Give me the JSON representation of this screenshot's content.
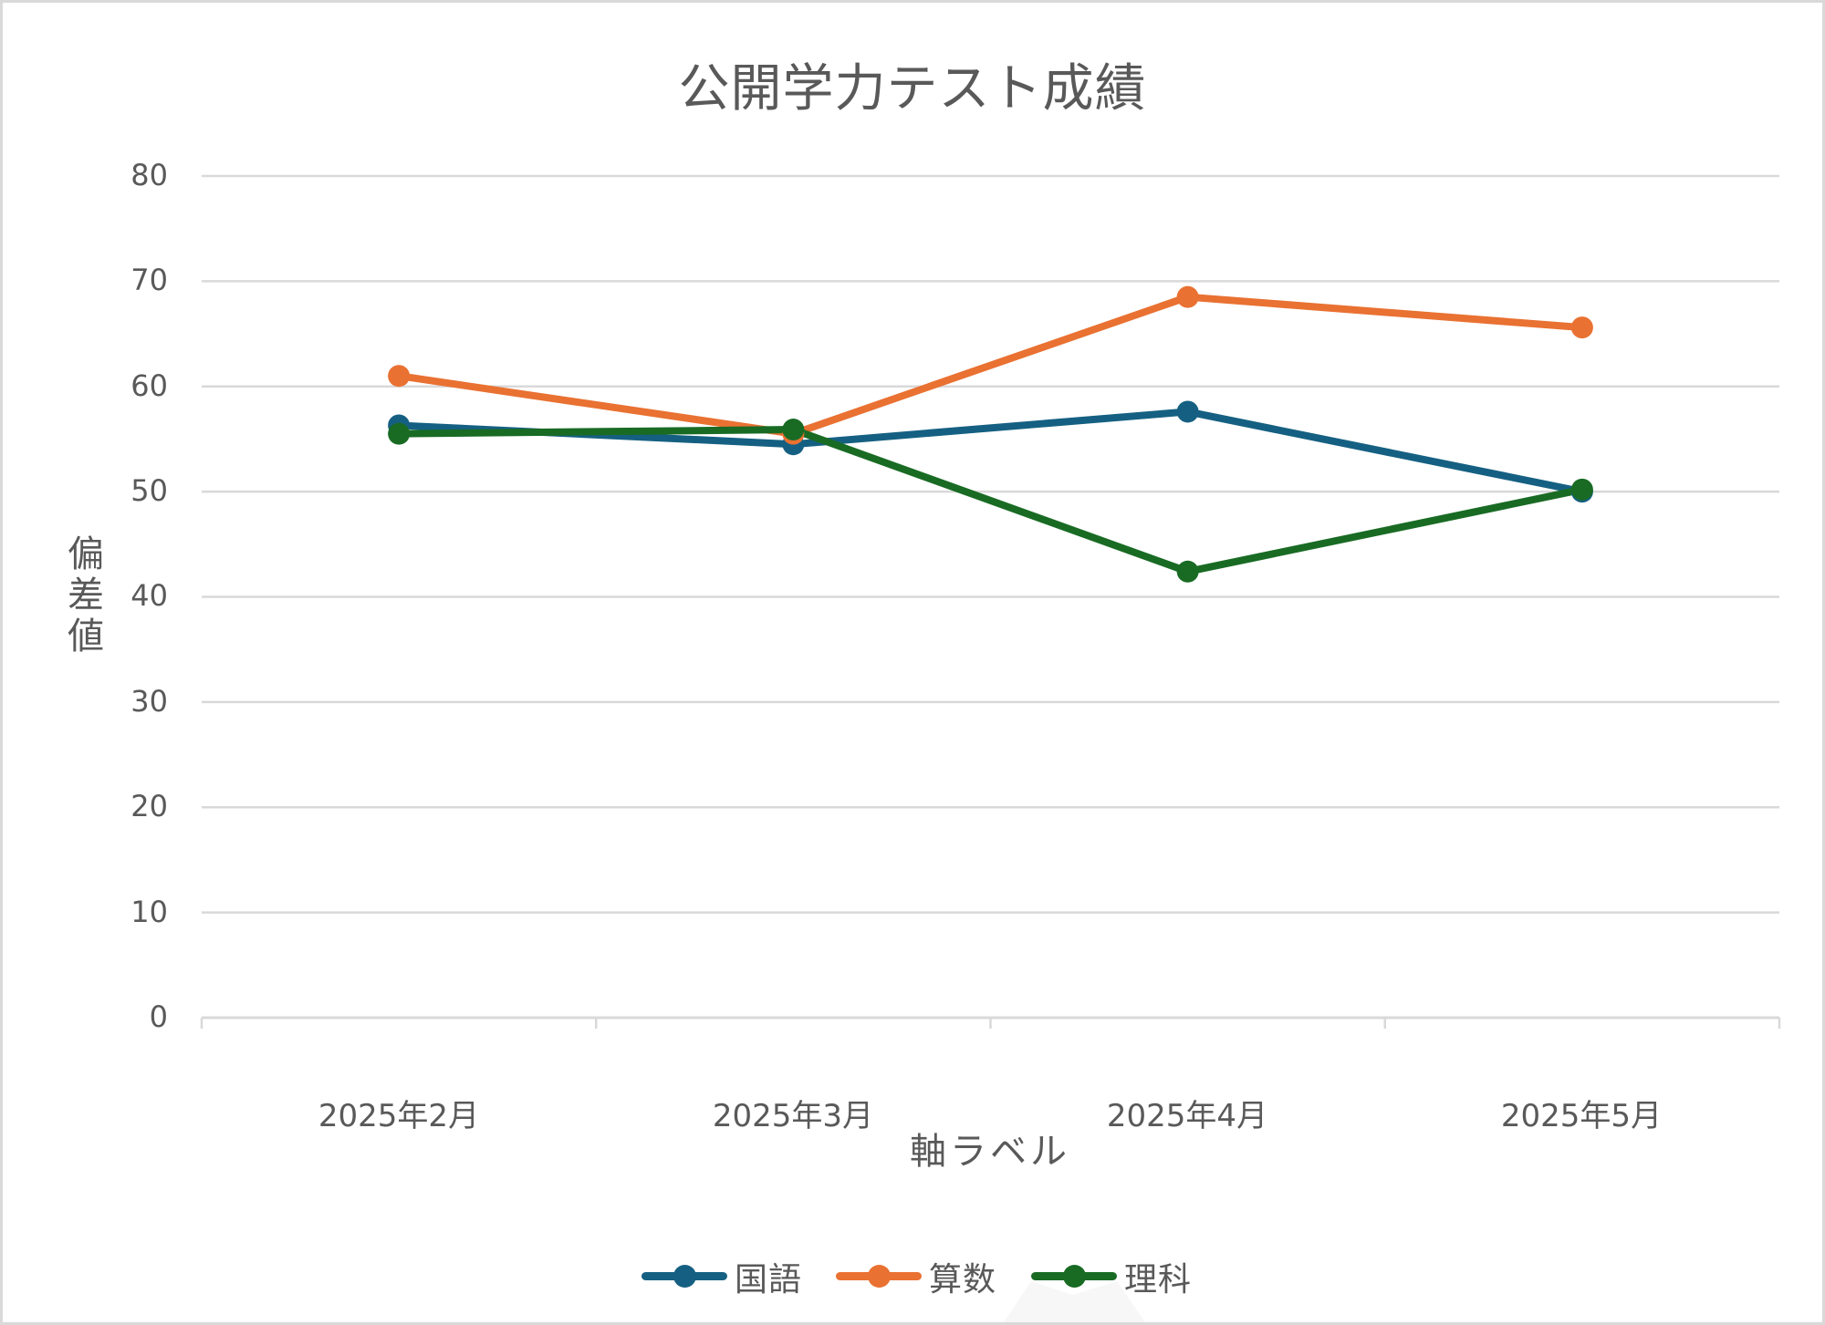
{
  "chart": {
    "title": "公開学力テスト成績",
    "y_axis_title": [
      "偏",
      "差",
      "値"
    ],
    "x_axis_title": "軸ラベル",
    "y_ticks": [
      "0",
      "10",
      "20",
      "30",
      "40",
      "50",
      "60",
      "70",
      "80"
    ],
    "x_ticks": [
      "2025年2月",
      "2025年3月",
      "2025年4月",
      "2025年5月"
    ],
    "legend": [
      {
        "label": "国語",
        "color": "#156082"
      },
      {
        "label": "算数",
        "color": "#E97132"
      },
      {
        "label": "理科",
        "color": "#196B24"
      }
    ],
    "gridline_color": "#d9d9d9",
    "border_color": "#d9d9d9"
  },
  "chart_data": {
    "type": "line",
    "title": "公開学力テスト成績",
    "xlabel": "軸ラベル",
    "ylabel": "偏差値",
    "categories": [
      "2025年2月",
      "2025年3月",
      "2025年4月",
      "2025年5月"
    ],
    "series": [
      {
        "name": "国語",
        "values": [
          56.3,
          54.5,
          57.6,
          50.0
        ],
        "color": "#156082"
      },
      {
        "name": "算数",
        "values": [
          61.0,
          55.5,
          68.5,
          65.6
        ],
        "color": "#E97132"
      },
      {
        "name": "理科",
        "values": [
          55.5,
          55.9,
          42.4,
          50.2
        ],
        "color": "#196B24"
      }
    ],
    "ylim": [
      0,
      80
    ],
    "y_step": 10,
    "grid": true,
    "legend_position": "bottom",
    "markers": true
  }
}
